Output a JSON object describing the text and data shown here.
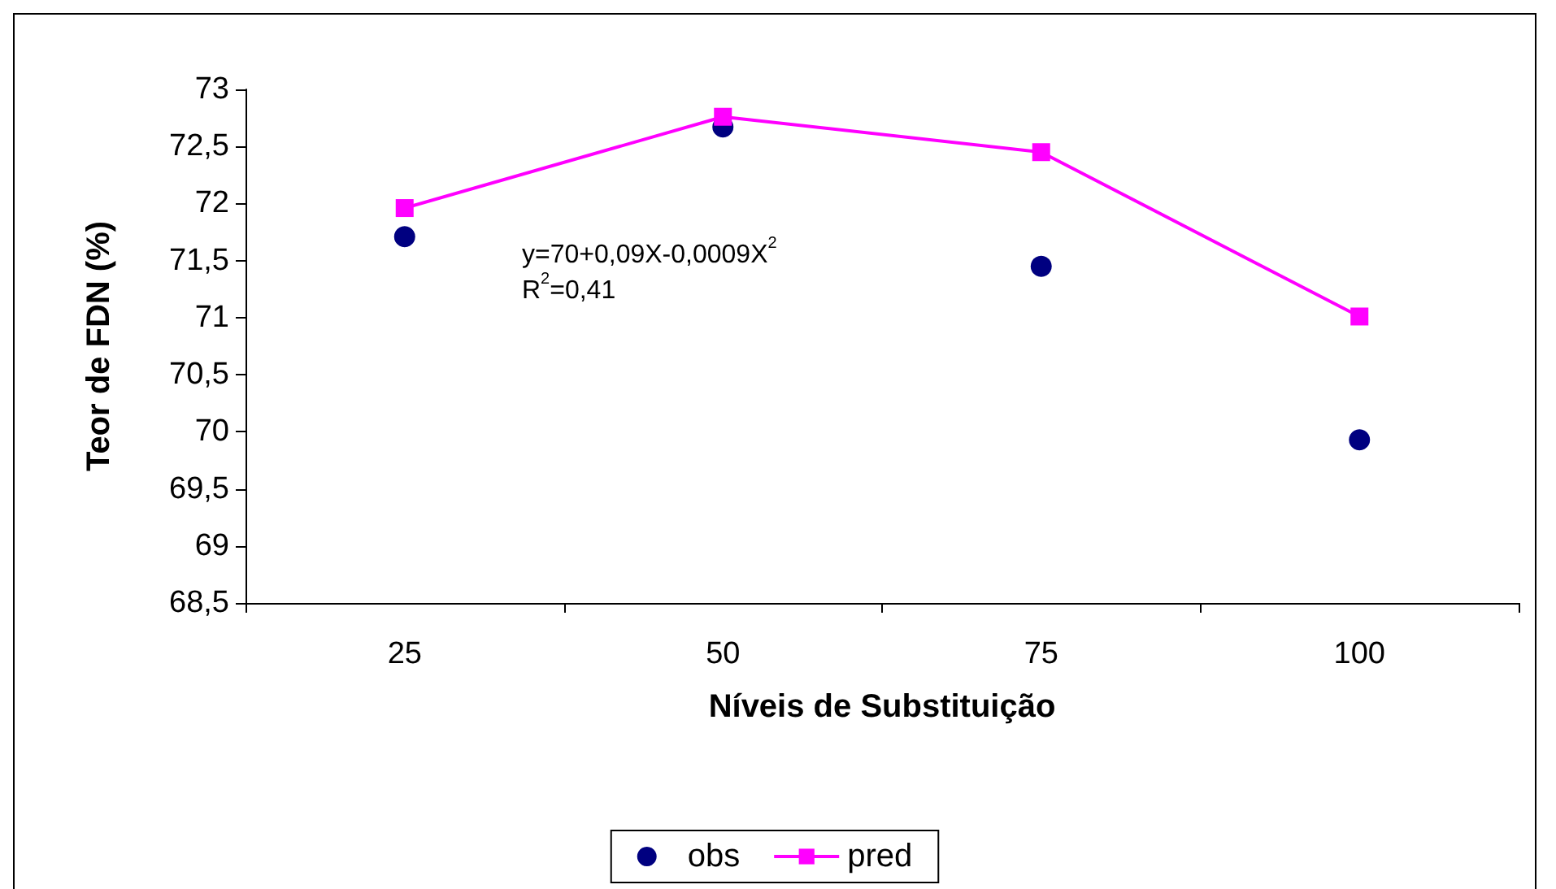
{
  "chart_data": {
    "type": "scatter",
    "xlabel": "Níveis de Substituição",
    "ylabel": "Teor de FDN (%)",
    "categories": [
      "25",
      "50",
      "75",
      "100"
    ],
    "series": [
      {
        "name": "obs",
        "marker": "circle",
        "color": "#000080",
        "values": [
          71.71,
          72.67,
          71.45,
          69.93
        ]
      },
      {
        "name": "pred",
        "type": "line",
        "marker": "square",
        "color": "#ff00ff",
        "values": [
          71.96,
          72.76,
          72.45,
          71.01
        ]
      }
    ],
    "ylim": [
      68.5,
      73
    ],
    "yticks": [
      {
        "value": 68.5,
        "label": "68,5"
      },
      69,
      {
        "value": 69.5,
        "label": "69,5"
      },
      70,
      {
        "value": 70.5,
        "label": "70,5"
      },
      71,
      {
        "value": 71.5,
        "label": "71,5"
      },
      72,
      {
        "value": 72.5,
        "label": "72,5"
      },
      73
    ],
    "annotations": [
      "y=70+0,09X-0,0009X$^{2}$",
      "R$^{2}$=0,41"
    ],
    "grid": false,
    "legend": "bottom"
  }
}
